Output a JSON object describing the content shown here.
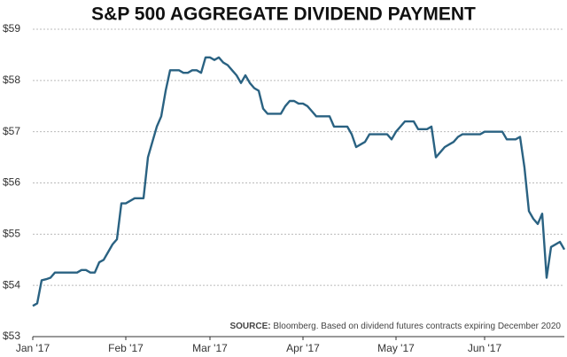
{
  "chart_data": {
    "type": "line",
    "title": "S&P 500 AGGREGATE DIVIDEND PAYMENT",
    "source_label": "SOURCE:",
    "source": "Bloomberg. Based on dividend futures contracts expiring December 2020",
    "color": "#2a6282",
    "grid": true,
    "xlim": [
      0,
      120
    ],
    "xticks": [
      {
        "value": 0,
        "label": "Jan '17"
      },
      {
        "value": 21,
        "label": "Feb '17"
      },
      {
        "value": 40,
        "label": "Mar '17"
      },
      {
        "value": 61,
        "label": "Apr '17"
      },
      {
        "value": 82,
        "label": "May '17"
      },
      {
        "value": 102,
        "label": "Jun '17"
      }
    ],
    "ylim": [
      53,
      59
    ],
    "yticks": [
      {
        "value": 53,
        "label": "$53"
      },
      {
        "value": 54,
        "label": "$54"
      },
      {
        "value": 55,
        "label": "$55"
      },
      {
        "value": 56,
        "label": "$56"
      },
      {
        "value": 57,
        "label": "$57"
      },
      {
        "value": 58,
        "label": "$58"
      },
      {
        "value": 59,
        "label": "$59"
      }
    ],
    "values": [
      53.6,
      53.65,
      54.1,
      54.12,
      54.15,
      54.25,
      54.25,
      54.25,
      54.25,
      54.25,
      54.25,
      54.3,
      54.3,
      54.25,
      54.25,
      54.45,
      54.5,
      54.65,
      54.8,
      54.9,
      55.6,
      55.6,
      55.65,
      55.7,
      55.7,
      55.7,
      56.5,
      56.8,
      57.1,
      57.3,
      57.8,
      58.2,
      58.2,
      58.2,
      58.15,
      58.15,
      58.2,
      58.2,
      58.15,
      58.45,
      58.45,
      58.4,
      58.45,
      58.35,
      58.3,
      58.2,
      58.1,
      57.95,
      58.1,
      57.95,
      57.85,
      57.8,
      57.45,
      57.35,
      57.35,
      57.35,
      57.35,
      57.5,
      57.6,
      57.6,
      57.55,
      57.55,
      57.5,
      57.4,
      57.3,
      57.3,
      57.3,
      57.3,
      57.1,
      57.1,
      57.1,
      57.1,
      56.95,
      56.7,
      56.75,
      56.8,
      56.95,
      56.95,
      56.95,
      56.95,
      56.95,
      56.85,
      57.0,
      57.1,
      57.2,
      57.2,
      57.2,
      57.05,
      57.05,
      57.05,
      57.1,
      56.5,
      56.6,
      56.7,
      56.75,
      56.8,
      56.9,
      56.95,
      56.95,
      56.95,
      56.95,
      56.95,
      57.0,
      57.0,
      57.0,
      57.0,
      57.0,
      56.85,
      56.85,
      56.85,
      56.9,
      56.3,
      55.45,
      55.3,
      55.2,
      55.4,
      54.15,
      54.75,
      54.8,
      54.85,
      54.7
    ]
  }
}
